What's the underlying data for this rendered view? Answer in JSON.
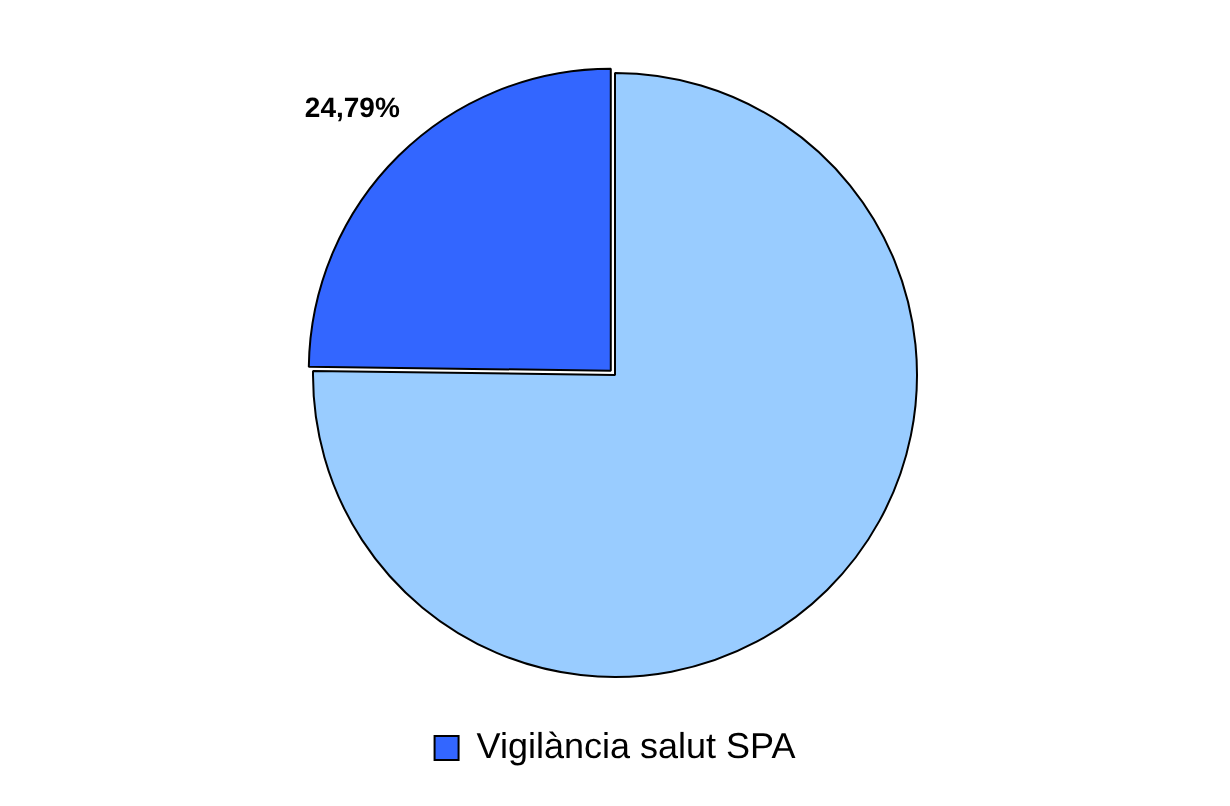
{
  "chart_data": {
    "type": "pie",
    "categories": [
      null,
      "Vigilància salut SPA"
    ],
    "values": [
      75.21,
      24.79
    ],
    "colors": [
      "#99ccff",
      "#3366ff"
    ],
    "value_labels": [
      null,
      "24,79%"
    ],
    "legend": "bottom"
  }
}
